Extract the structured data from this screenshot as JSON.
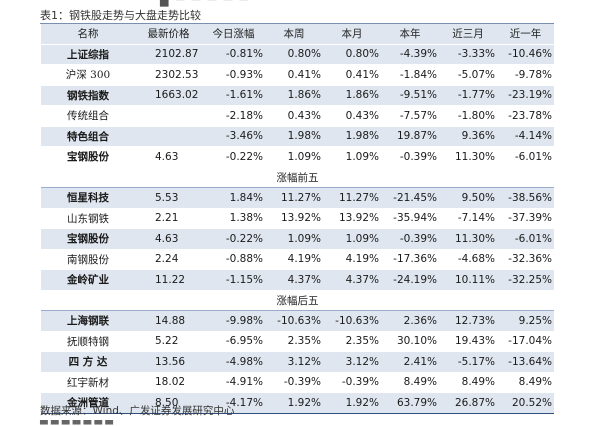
{
  "caption": "表1：钢铁股走势与大盘走势比较",
  "columns": [
    "名称",
    "最新价格",
    "今日涨幅",
    "本周",
    "本月",
    "本年",
    "近三月",
    "近一年"
  ],
  "sections": [
    {
      "title": "",
      "rows": [
        {
          "name": "上证综指",
          "values": [
            "2102.87",
            "-0.81%",
            "0.80%",
            "0.80%",
            "-4.39%",
            "-3.33%",
            "-10.46%"
          ]
        },
        {
          "name": "沪深 300",
          "values": [
            "2302.53",
            "-0.93%",
            "0.41%",
            "0.41%",
            "-1.84%",
            "-5.07%",
            "-9.78%"
          ]
        },
        {
          "name": "钢铁指数",
          "values": [
            "1663.02",
            "-1.61%",
            "1.86%",
            "1.86%",
            "-9.51%",
            "-1.77%",
            "-23.19%"
          ]
        },
        {
          "name": "传统组合",
          "values": [
            "",
            "-2.18%",
            "0.43%",
            "0.43%",
            "-7.57%",
            "-1.80%",
            "-23.78%"
          ]
        },
        {
          "name": "特色组合",
          "values": [
            "",
            "-3.46%",
            "1.98%",
            "1.98%",
            "19.87%",
            "9.36%",
            "-4.14%"
          ]
        },
        {
          "name": "宝钢股份",
          "values": [
            "4.63",
            "-0.22%",
            "1.09%",
            "1.09%",
            "-0.39%",
            "11.30%",
            "-6.01%"
          ]
        }
      ]
    },
    {
      "title": "涨幅前五",
      "rows": [
        {
          "name": "恒星科技",
          "values": [
            "5.53",
            "1.84%",
            "11.27%",
            "11.27%",
            "-21.45%",
            "9.50%",
            "-38.56%"
          ]
        },
        {
          "name": "山东钢铁",
          "values": [
            "2.21",
            "1.38%",
            "13.92%",
            "13.92%",
            "-35.94%",
            "-7.14%",
            "-37.39%"
          ]
        },
        {
          "name": "宝钢股份",
          "values": [
            "4.63",
            "-0.22%",
            "1.09%",
            "1.09%",
            "-0.39%",
            "11.30%",
            "-6.01%"
          ]
        },
        {
          "name": "南钢股份",
          "values": [
            "2.24",
            "-0.88%",
            "4.19%",
            "4.19%",
            "-17.36%",
            "-4.68%",
            "-32.36%"
          ]
        },
        {
          "name": "金岭矿业",
          "values": [
            "11.22",
            "-1.15%",
            "4.37%",
            "4.37%",
            "-24.19%",
            "10.11%",
            "-32.25%"
          ]
        }
      ]
    },
    {
      "title": "涨幅后五",
      "rows": [
        {
          "name": "上海钢联",
          "values": [
            "14.88",
            "-9.98%",
            "-10.63%",
            "-10.63%",
            "2.36%",
            "12.73%",
            "9.25%"
          ]
        },
        {
          "name": "抚顺特钢",
          "values": [
            "5.22",
            "-6.95%",
            "2.35%",
            "2.35%",
            "30.10%",
            "19.43%",
            "-17.04%"
          ]
        },
        {
          "name": "四 方 达",
          "values": [
            "13.56",
            "-4.98%",
            "3.12%",
            "3.12%",
            "2.41%",
            "-5.17%",
            "-13.64%"
          ]
        },
        {
          "name": "红宇新材",
          "values": [
            "18.02",
            "-4.91%",
            "-0.39%",
            "-0.39%",
            "8.49%",
            "8.49%",
            "8.49%"
          ]
        },
        {
          "name": "金洲管道",
          "values": [
            "8.50",
            "-4.17%",
            "1.92%",
            "1.92%",
            "63.79%",
            "26.87%",
            "20.52%"
          ]
        }
      ]
    }
  ],
  "source": "数据来源：Wind、广发证券发展研究中心"
}
